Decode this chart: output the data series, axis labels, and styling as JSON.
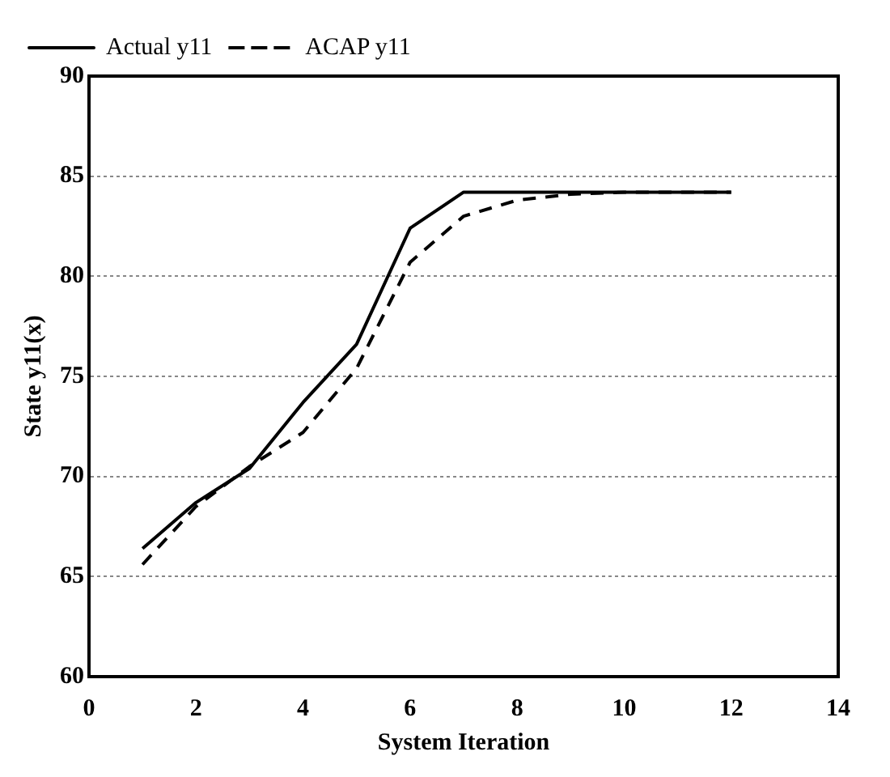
{
  "chart_data": {
    "type": "line",
    "xlabel": "System Iteration",
    "ylabel": "State y11(x)",
    "x": [
      1,
      2,
      3,
      4,
      5,
      6,
      7,
      8,
      9,
      10,
      11,
      12
    ],
    "series": [
      {
        "name": "Actual y11",
        "color": "#000000",
        "line_style": "solid",
        "values": [
          66.4,
          68.7,
          70.4,
          73.7,
          76.6,
          82.4,
          84.2,
          84.2,
          84.2,
          84.2,
          84.2,
          84.2
        ]
      },
      {
        "name": "ACAP y11",
        "color": "#000000",
        "line_style": "dashed",
        "values": [
          65.6,
          68.5,
          70.5,
          72.2,
          75.4,
          80.7,
          83.0,
          83.8,
          84.1,
          84.2,
          84.2,
          84.2
        ]
      }
    ],
    "xlim": [
      0,
      14
    ],
    "xticks": [
      0,
      2,
      4,
      6,
      8,
      10,
      12,
      14
    ],
    "ylim": [
      60,
      90
    ],
    "yticks": [
      60,
      65,
      70,
      75,
      80,
      85,
      90
    ],
    "grid": "y",
    "legend": "top left",
    "marker": "none"
  }
}
